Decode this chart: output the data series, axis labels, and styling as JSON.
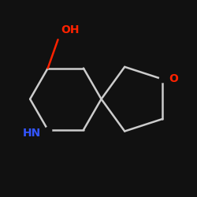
{
  "bg_color": "#111111",
  "bond_color": "#cccccc",
  "oh_color": "#ff2200",
  "nh_color": "#3355ff",
  "o_ring_color": "#ff2200",
  "bond_width": 1.8,
  "font_size_oh": 10,
  "font_size_nh": 10,
  "font_size_o": 10,
  "oh_label": "OH",
  "nh_label": "HN",
  "o_label": "O"
}
